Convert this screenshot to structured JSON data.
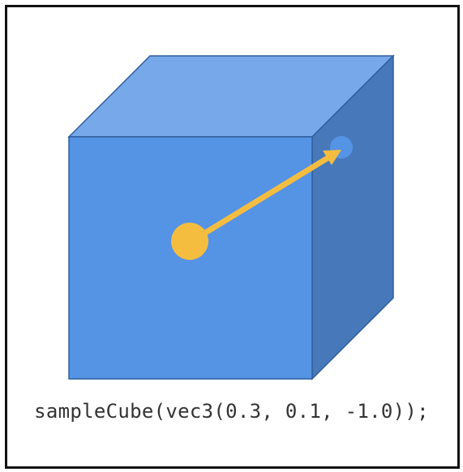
{
  "caption": {
    "code": "sampleCube(vec3(0.3, 0.1, -1.0));"
  },
  "colors": {
    "cube_front": "#5593E4",
    "cube_top": "#77A9EA",
    "cube_side": "#4678BA",
    "cube_edge": "#2F5F9E",
    "origin_dot": "#F5BD40",
    "arrow": "#F5BD40",
    "target_dot": "#5593E4",
    "frame_border": "#111111"
  },
  "icons": {
    "origin": "filled-circle",
    "target": "filled-circle",
    "direction": "arrow"
  }
}
